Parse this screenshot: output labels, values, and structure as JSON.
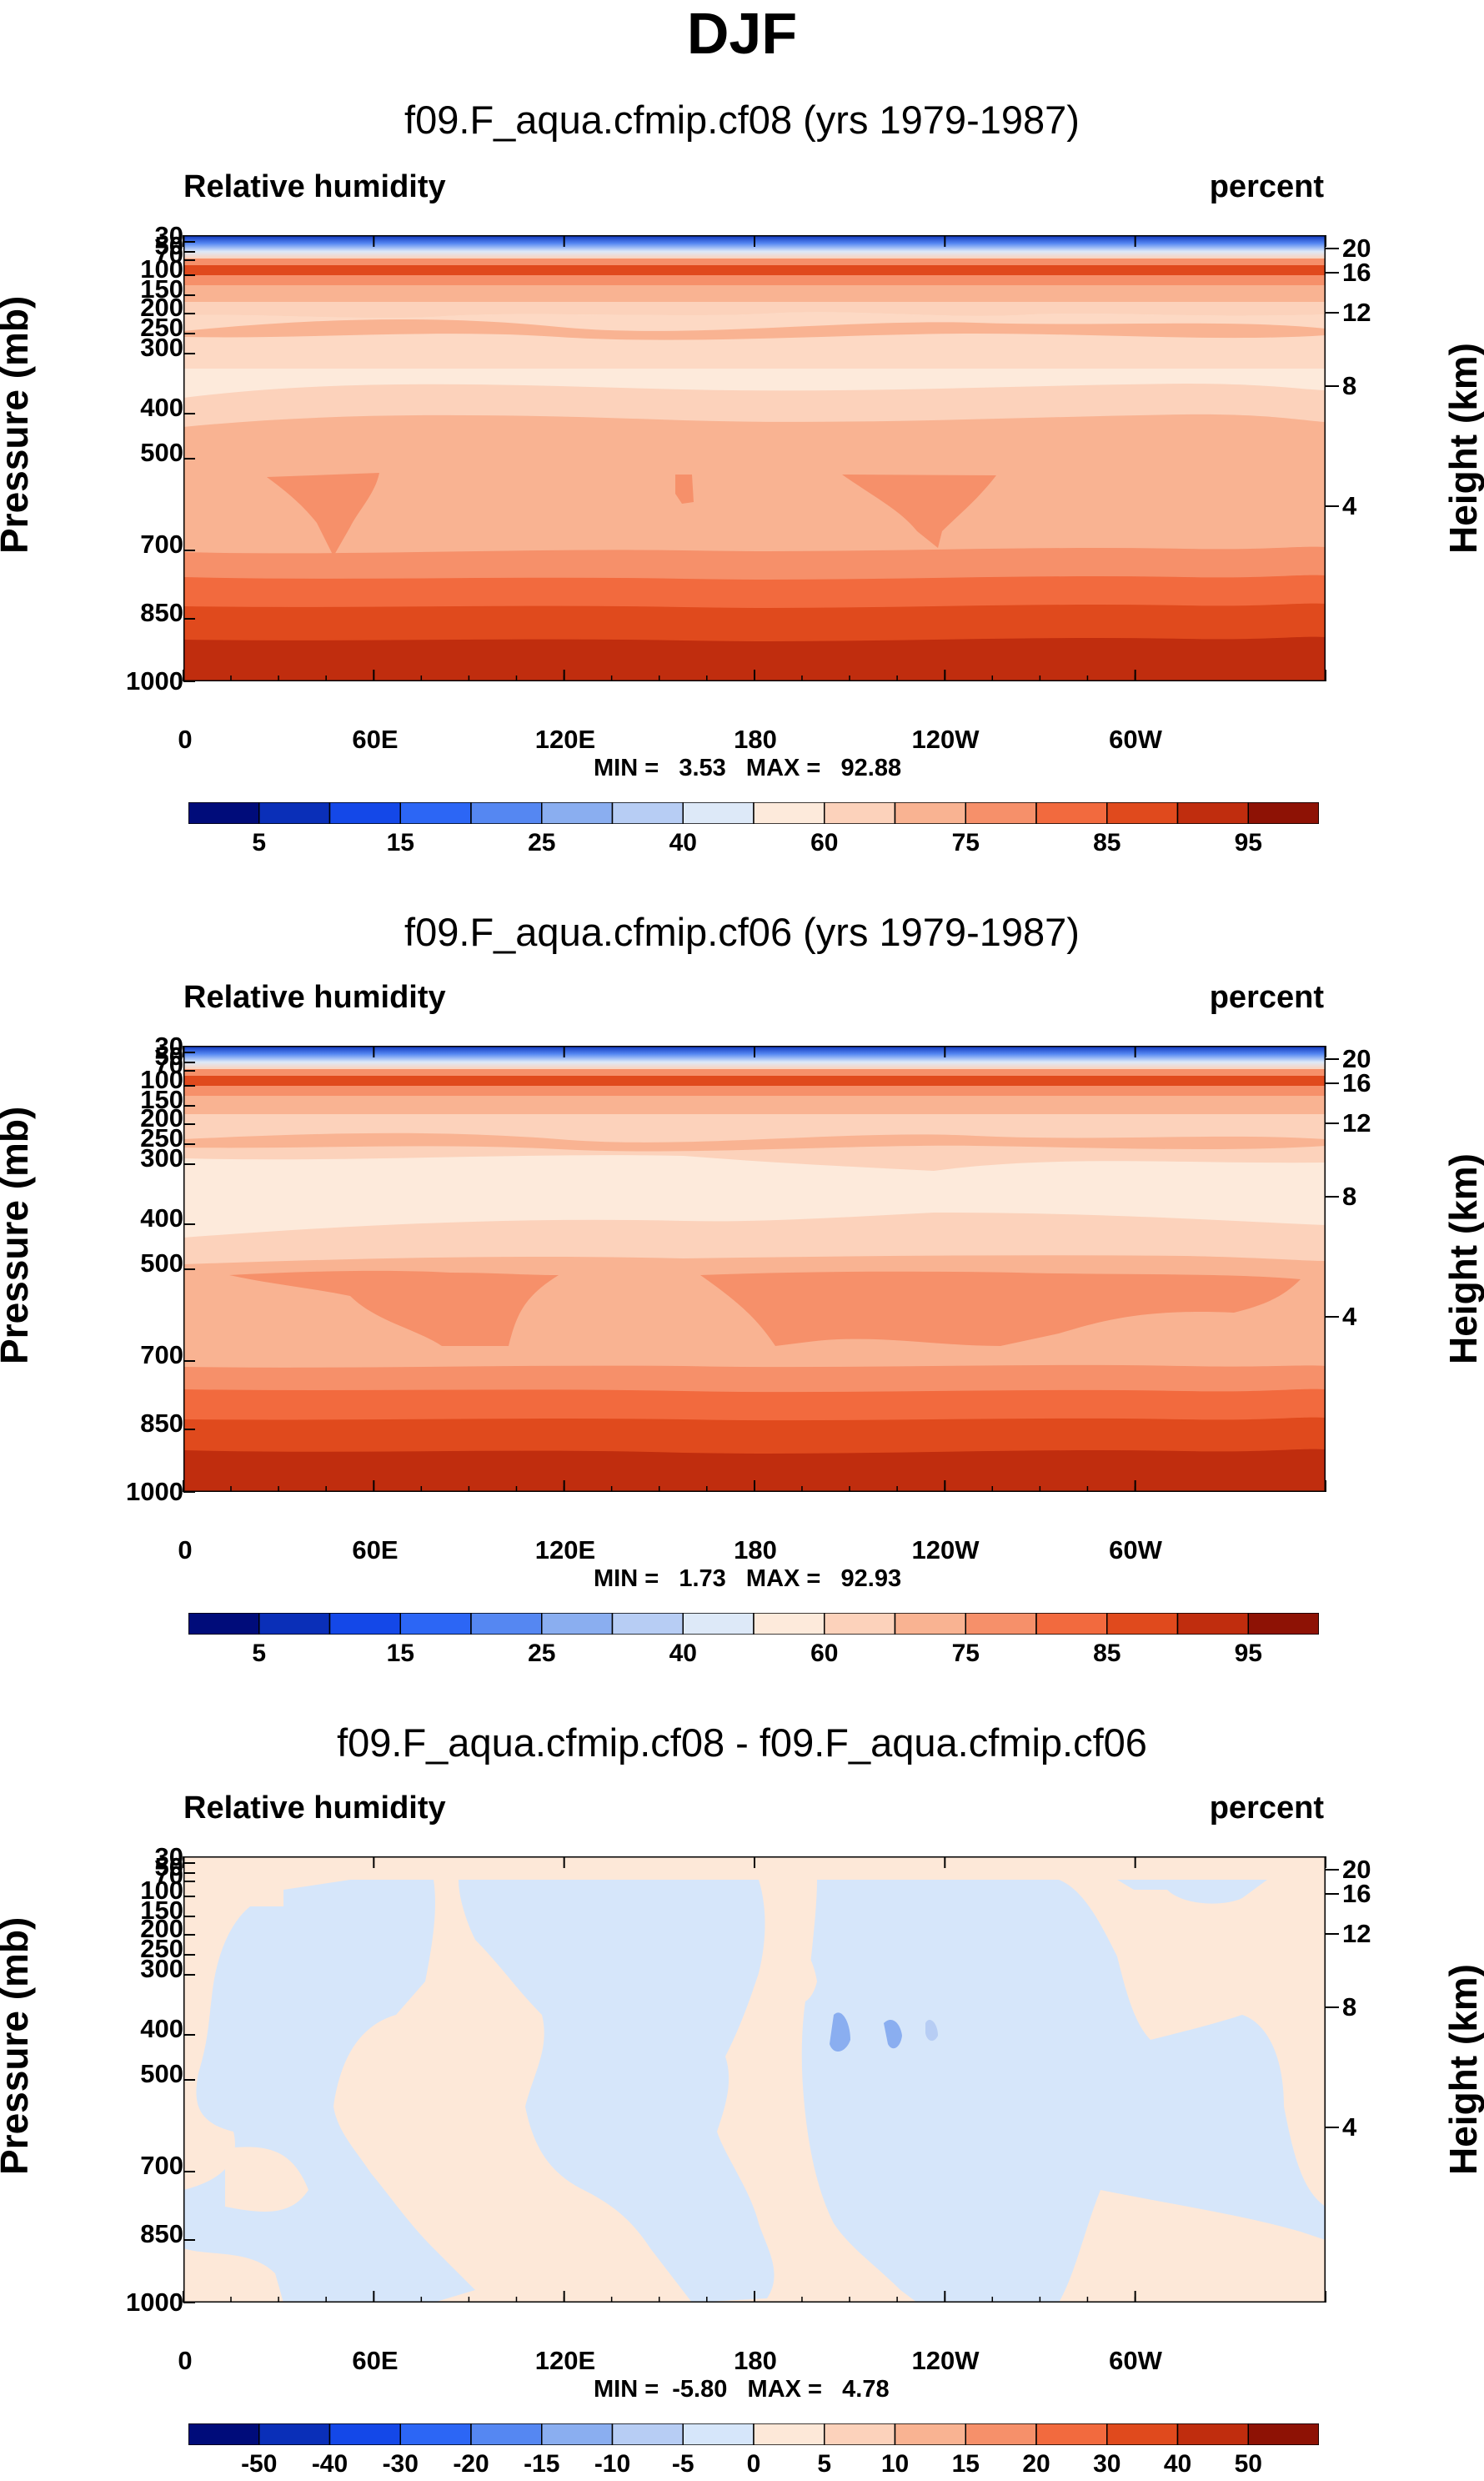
{
  "figure": {
    "title": "DJF"
  },
  "chart_data": [
    {
      "type": "heatmap",
      "title": "f09.F_aqua.cfmip.cf08 (yrs 1979-1987)",
      "left_label": "Relative humidity",
      "right_label": "percent",
      "ylabel": "Pressure (mb)",
      "ylabel_right": "Height (km)",
      "xticks": [
        "0",
        "60E",
        "120E",
        "180",
        "120W",
        "60W"
      ],
      "xtick_values": [
        0,
        60,
        120,
        180,
        240,
        300
      ],
      "xlim": [
        0,
        360
      ],
      "yticks": [
        "30",
        "50",
        "70",
        "100",
        "150",
        "200",
        "250",
        "300",
        "400",
        "500",
        "700",
        "850",
        "1000"
      ],
      "ytick_values": [
        30,
        50,
        70,
        100,
        150,
        200,
        250,
        300,
        400,
        500,
        700,
        850,
        1000
      ],
      "ylim": [
        30,
        1000
      ],
      "height_ticks": [
        "20",
        "16",
        "12",
        "8",
        "4"
      ],
      "height_tick_values": [
        20,
        16,
        12,
        8,
        4
      ],
      "stats": "MIN =   3.53   MAX =   92.88",
      "min": 3.53,
      "max": 92.88,
      "colorbar": {
        "levels": [
          "5",
          "15",
          "25",
          "40",
          "60",
          "75",
          "85",
          "95"
        ]
      }
    },
    {
      "type": "heatmap",
      "title": "f09.F_aqua.cfmip.cf06 (yrs 1979-1987)",
      "left_label": "Relative humidity",
      "right_label": "percent",
      "ylabel": "Pressure (mb)",
      "ylabel_right": "Height (km)",
      "xticks": [
        "0",
        "60E",
        "120E",
        "180",
        "120W",
        "60W"
      ],
      "xtick_values": [
        0,
        60,
        120,
        180,
        240,
        300
      ],
      "xlim": [
        0,
        360
      ],
      "yticks": [
        "30",
        "50",
        "70",
        "100",
        "150",
        "200",
        "250",
        "300",
        "400",
        "500",
        "700",
        "850",
        "1000"
      ],
      "ytick_values": [
        30,
        50,
        70,
        100,
        150,
        200,
        250,
        300,
        400,
        500,
        700,
        850,
        1000
      ],
      "ylim": [
        30,
        1000
      ],
      "height_ticks": [
        "20",
        "16",
        "12",
        "8",
        "4"
      ],
      "height_tick_values": [
        20,
        16,
        12,
        8,
        4
      ],
      "stats": "MIN =   1.73   MAX =   92.93",
      "min": 1.73,
      "max": 92.93,
      "colorbar": {
        "levels": [
          "5",
          "15",
          "25",
          "40",
          "60",
          "75",
          "85",
          "95"
        ]
      }
    },
    {
      "type": "heatmap",
      "title": "f09.F_aqua.cfmip.cf08 - f09.F_aqua.cfmip.cf06",
      "left_label": "Relative humidity",
      "right_label": "percent",
      "ylabel": "Pressure (mb)",
      "ylabel_right": "Height (km)",
      "xticks": [
        "0",
        "60E",
        "120E",
        "180",
        "120W",
        "60W"
      ],
      "xtick_values": [
        0,
        60,
        120,
        180,
        240,
        300
      ],
      "xlim": [
        0,
        360
      ],
      "yticks": [
        "30",
        "50",
        "70",
        "100",
        "150",
        "200",
        "250",
        "300",
        "400",
        "500",
        "700",
        "850",
        "1000"
      ],
      "ytick_values": [
        30,
        50,
        70,
        100,
        150,
        200,
        250,
        300,
        400,
        500,
        700,
        850,
        1000
      ],
      "ylim": [
        30,
        1000
      ],
      "height_ticks": [
        "20",
        "16",
        "12",
        "8",
        "4"
      ],
      "height_tick_values": [
        20,
        16,
        12,
        8,
        4
      ],
      "stats": "MIN =  -5.80   MAX =   4.78",
      "min": -5.8,
      "max": 4.78,
      "colorbar": {
        "levels": [
          "-50",
          "-40",
          "-30",
          "-20",
          "-15",
          "-10",
          "-5",
          "0",
          "5",
          "10",
          "15",
          "20",
          "30",
          "40",
          "50"
        ]
      }
    }
  ],
  "colors": {
    "rh_scale": [
      "#000c7a",
      "#0a2fb8",
      "#1448e8",
      "#2c66f5",
      "#5587f2",
      "#8aaef0",
      "#b7cdf4",
      "#dde9f8",
      "#fdeadb",
      "#fcd2bb",
      "#f9b392",
      "#f6906a",
      "#f26a3e",
      "#e04a1d",
      "#c02d0e",
      "#8e1205"
    ],
    "diff_scale": [
      "#000c7a",
      "#0a2fb8",
      "#1448e8",
      "#2c66f5",
      "#5587f2",
      "#8aaef0",
      "#b7cdf4",
      "#d6e6fa",
      "#fde8d8",
      "#fcd2bb",
      "#f9b392",
      "#f6906a",
      "#f26a3e",
      "#e04a1d",
      "#c02d0e",
      "#8e1205"
    ]
  }
}
